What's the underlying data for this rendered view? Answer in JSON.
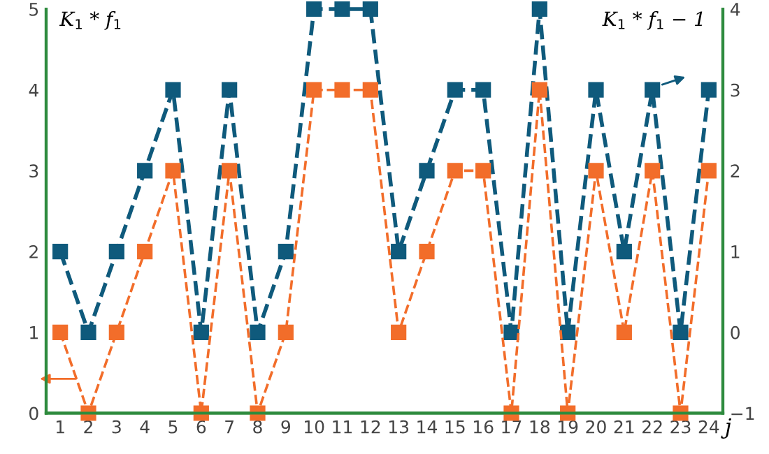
{
  "chart_data": {
    "type": "line",
    "ylabel": "K$_{1}$ * f$_{1}$",
    "y2label": "K$_{1}$ * f$_{1}$ − 1",
    "xlabel": "j",
    "categories": [
      "1",
      "2",
      "3",
      "4",
      "5",
      "6",
      "7",
      "8",
      "9",
      "10",
      "11",
      "12",
      "13",
      "14",
      "15",
      "16",
      "17",
      "18",
      "19",
      "20",
      "21",
      "22",
      "23",
      "24"
    ],
    "series": [
      {
        "color": "#0f5a7c",
        "values": [
          2,
          1,
          2,
          3,
          4,
          1,
          4,
          1,
          2,
          5,
          5,
          5,
          2,
          3,
          4,
          4,
          1,
          5,
          1,
          4,
          2,
          4,
          1,
          4
        ]
      },
      {
        "color": "#f26d2a",
        "axis": "y2",
        "values": [
          0,
          -1,
          0,
          1,
          2,
          -1,
          2,
          -1,
          0,
          3,
          3,
          3,
          0,
          1,
          2,
          2,
          -1,
          3,
          -1,
          2,
          0,
          2,
          -1,
          2
        ]
      }
    ],
    "ylim": [
      0,
      5
    ],
    "yticks": [
      0,
      1,
      2,
      3,
      4,
      5
    ],
    "y2lim": [
      -1,
      4
    ],
    "y2ticks": [
      {
        "value": -1,
        "label": "−1"
      },
      0,
      1,
      2,
      3,
      4
    ],
    "marker": "square",
    "line_style": "dashed",
    "grid": false,
    "legend": false
  }
}
